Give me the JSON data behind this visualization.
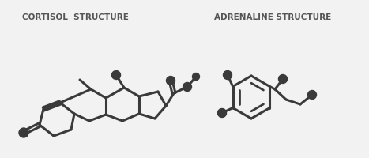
{
  "bg_color": "#f2f2f2",
  "line_color": "#3a3a3a",
  "dot_color": "#3a3a3a",
  "title1": "CORTISOL  STRUCTURE",
  "title2": "ADRENALINE STRUCTURE",
  "title_fontsize": 7.5,
  "title_color": "#555555",
  "lw": 2.2,
  "dot_r": 5.5
}
